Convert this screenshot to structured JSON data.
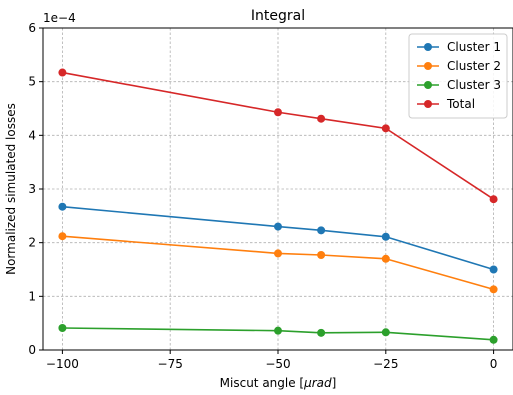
{
  "chart_data": {
    "type": "line",
    "title": "Integral",
    "xlabel": "Miscut angle [$\\mu rad$]",
    "xlabel_display": "Miscut angle [",
    "xlabel_mu": "μrad",
    "xlabel_end": "]",
    "ylabel": "Normalized simulated losses",
    "y_offset_label": "1e−4",
    "xlim": [
      -104.5,
      4.5
    ],
    "ylim": [
      0,
      6
    ],
    "x_ticks": [
      -100,
      -75,
      -50,
      -25,
      0
    ],
    "x_tick_labels": [
      "−100",
      "−75",
      "−50",
      "−25",
      "0"
    ],
    "y_ticks": [
      0,
      1,
      2,
      3,
      4,
      5,
      6
    ],
    "y_tick_labels": [
      "0",
      "1",
      "2",
      "3",
      "4",
      "5",
      "6"
    ],
    "grid": true,
    "legend_position": "top-right",
    "x": [
      -100,
      -50,
      -40,
      -25,
      0
    ],
    "series": [
      {
        "name": "Cluster 1",
        "color": "#1f77b4",
        "values": [
          2.67,
          2.3,
          2.23,
          2.11,
          1.5
        ]
      },
      {
        "name": "Cluster 2",
        "color": "#ff7f0e",
        "values": [
          2.12,
          1.8,
          1.77,
          1.7,
          1.13
        ]
      },
      {
        "name": "Cluster 3",
        "color": "#2ca02c",
        "values": [
          0.41,
          0.36,
          0.32,
          0.33,
          0.19
        ]
      },
      {
        "name": "Total",
        "color": "#d62728",
        "values": [
          5.17,
          4.43,
          4.31,
          4.13,
          2.81
        ]
      }
    ]
  }
}
